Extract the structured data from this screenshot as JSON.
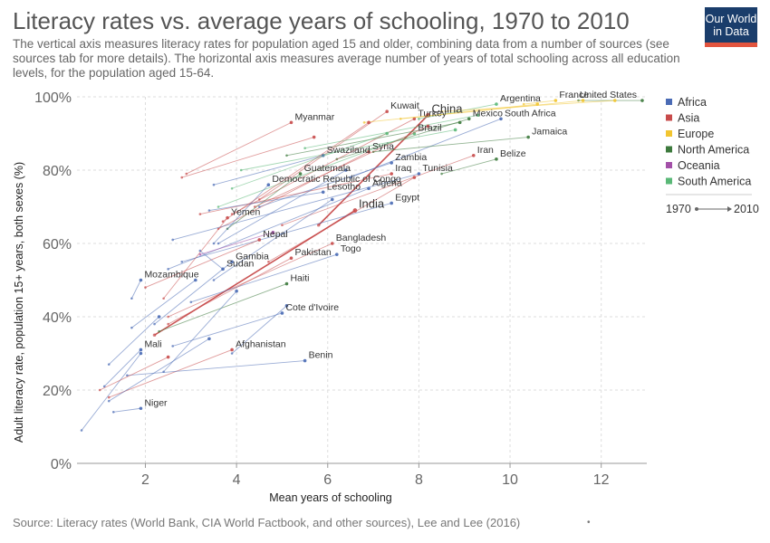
{
  "header": {
    "title": "Literacy rates vs. average years of schooling, 1970 to 2010",
    "subtitle": "The vertical axis measures literacy rates for population aged 15 and older, combining data from a number of sources (see sources tab for more details). The horizontal axis measures average number of years of total schooling across all education levels, for the population aged 15-64."
  },
  "logo": {
    "line1": "Our World",
    "line2": "in Data"
  },
  "footer": {
    "source": "Source: Literacy rates (World Bank, CIA World Factbook, and other sources), Lee and Lee (2016)",
    "dot": "•"
  },
  "colors": {
    "Africa": "#4a6bb5",
    "Asia": "#c84b4b",
    "Europe": "#f2c530",
    "North America": "#3d7a3d",
    "Oceania": "#a350a8",
    "South America": "#5ab877"
  },
  "chart_data": {
    "type": "scatter",
    "title": "Literacy rates vs. average years of schooling, 1970 to 2010",
    "xlabel": "Mean years of schooling",
    "ylabel": "Adult literacy rate, population 15+ years, both sexes (%)",
    "xlim": [
      0.5,
      13
    ],
    "ylim": [
      0,
      100
    ],
    "xticks": [
      2,
      4,
      6,
      8,
      10,
      12
    ],
    "yticks": [
      0,
      20,
      40,
      60,
      80,
      100
    ],
    "ytick_labels": [
      "0%",
      "20%",
      "40%",
      "60%",
      "80%",
      "100%"
    ],
    "grid": true,
    "legend": {
      "placement": "top-right",
      "entries": [
        "Africa",
        "Asia",
        "Europe",
        "North America",
        "Oceania",
        "South America"
      ],
      "time_start": "1970",
      "time_end": "2010"
    },
    "series": [
      {
        "label": "China",
        "region": "Asia",
        "x0": 5.8,
        "y0": 65,
        "x1": 8.2,
        "y1": 95,
        "big": true
      },
      {
        "label": "India",
        "region": "Asia",
        "x0": 2.2,
        "y0": 35,
        "x1": 6.6,
        "y1": 69,
        "big": true
      },
      {
        "label": "United States",
        "region": "North America",
        "x0": 11.5,
        "y0": 99,
        "x1": 12.9,
        "y1": 99
      },
      {
        "label": "France",
        "region": "Europe",
        "x0": 10.3,
        "y0": 98,
        "x1": 11,
        "y1": 99
      },
      {
        "label": "Argentina",
        "region": "South America",
        "x0": 8,
        "y0": 94,
        "x1": 9.7,
        "y1": 98
      },
      {
        "label": "Mexico",
        "region": "North America",
        "x0": 6.2,
        "y0": 83,
        "x1": 9.1,
        "y1": 94
      },
      {
        "label": "South Africa",
        "region": "Africa",
        "x0": 6.5,
        "y0": 78,
        "x1": 9.8,
        "y1": 94
      },
      {
        "label": "Jamaica",
        "region": "North America",
        "x0": 7,
        "y0": 85,
        "x1": 10.4,
        "y1": 89
      },
      {
        "label": "Turkey",
        "region": "Asia",
        "x0": 3.9,
        "y0": 68,
        "x1": 7.9,
        "y1": 94
      },
      {
        "label": "Kuwait",
        "region": "Asia",
        "x0": 4.5,
        "y0": 72,
        "x1": 7.3,
        "y1": 96
      },
      {
        "label": "Myanmar",
        "region": "Asia",
        "x0": 2.9,
        "y0": 79,
        "x1": 5.2,
        "y1": 93
      },
      {
        "label": "Brazil",
        "region": "South America",
        "x0": 3.6,
        "y0": 70,
        "x1": 7.9,
        "y1": 90
      },
      {
        "label": "Syria",
        "region": "Asia",
        "x0": 3.6,
        "y0": 64,
        "x1": 6.9,
        "y1": 85
      },
      {
        "label": "Swaziland",
        "region": "Africa",
        "x0": 3.5,
        "y0": 76,
        "x1": 5.9,
        "y1": 84
      },
      {
        "label": "Zambia",
        "region": "Africa",
        "x0": 4.5,
        "y0": 70,
        "x1": 7.4,
        "y1": 82
      },
      {
        "label": "Iraq",
        "region": "Asia",
        "x0": 3.2,
        "y0": 68,
        "x1": 7.4,
        "y1": 79
      },
      {
        "label": "Tunisia",
        "region": "Africa",
        "x0": 2.6,
        "y0": 61,
        "x1": 8,
        "y1": 79
      },
      {
        "label": "Iran",
        "region": "Asia",
        "x0": 5,
        "y0": 65,
        "x1": 9.2,
        "y1": 84
      },
      {
        "label": "Belize",
        "region": "North America",
        "x0": 8.5,
        "y0": 79,
        "x1": 9.7,
        "y1": 83
      },
      {
        "label": "Guatemala",
        "region": "North America",
        "x0": 3.8,
        "y0": 64,
        "x1": 5.4,
        "y1": 79
      },
      {
        "label": "Democratic Republic of Congo",
        "region": "Africa",
        "x0": 3.5,
        "y0": 60,
        "x1": 4.7,
        "y1": 76
      },
      {
        "label": "Lesotho",
        "region": "Africa",
        "x0": 3.4,
        "y0": 69,
        "x1": 5.9,
        "y1": 74
      },
      {
        "label": "Algeria",
        "region": "Africa",
        "x0": 2.5,
        "y0": 53,
        "x1": 6.9,
        "y1": 75
      },
      {
        "label": "Egypt",
        "region": "Africa",
        "x0": 2.8,
        "y0": 55,
        "x1": 7.4,
        "y1": 71
      },
      {
        "label": "Yemen",
        "region": "Asia",
        "x0": 2.4,
        "y0": 45,
        "x1": 3.8,
        "y1": 67
      },
      {
        "label": "Nepal",
        "region": "Asia",
        "x0": 2,
        "y0": 48,
        "x1": 4.5,
        "y1": 61
      },
      {
        "label": "Bangladesh",
        "region": "Asia",
        "x0": 2.5,
        "y0": 40,
        "x1": 6.1,
        "y1": 60
      },
      {
        "label": "Togo",
        "region": "Africa",
        "x0": 3,
        "y0": 44,
        "x1": 6.2,
        "y1": 57
      },
      {
        "label": "Pakistan",
        "region": "Asia",
        "x0": 2.5,
        "y0": 38,
        "x1": 5.2,
        "y1": 56
      },
      {
        "label": "Gambia",
        "region": "Africa",
        "x0": 2.2,
        "y0": 38,
        "x1": 3.9,
        "y1": 55
      },
      {
        "label": "Sudan",
        "region": "Africa",
        "x0": 3.2,
        "y0": 58,
        "x1": 3.7,
        "y1": 53
      },
      {
        "label": "Mozambique",
        "region": "Africa",
        "x0": 1.7,
        "y0": 45,
        "x1": 1.9,
        "y1": 50
      },
      {
        "label": "Haiti",
        "region": "North America",
        "x0": 2.3,
        "y0": 36,
        "x1": 5.1,
        "y1": 49
      },
      {
        "label": "Cote d'Ivoire",
        "region": "Africa",
        "x0": 2.6,
        "y0": 32,
        "x1": 5,
        "y1": 41
      },
      {
        "label": "Mali",
        "region": "Africa",
        "x0": 1.1,
        "y0": 21,
        "x1": 1.9,
        "y1": 31
      },
      {
        "label": "Afghanistan",
        "region": "Asia",
        "x0": 1.2,
        "y0": 18,
        "x1": 3.9,
        "y1": 31
      },
      {
        "label": "Benin",
        "region": "Africa",
        "x0": 1.6,
        "y0": 24,
        "x1": 5.5,
        "y1": 28
      },
      {
        "label": "Niger",
        "region": "Africa",
        "x0": 1.3,
        "y0": 14,
        "x1": 1.9,
        "y1": 15
      },
      {
        "label": "",
        "region": "Africa",
        "x0": 0.6,
        "y0": 9,
        "x1": 1.9,
        "y1": 30
      },
      {
        "label": "",
        "region": "Africa",
        "x0": 1.2,
        "y0": 27,
        "x1": 2.3,
        "y1": 40
      },
      {
        "label": "",
        "region": "Asia",
        "x0": 1.0,
        "y0": 20,
        "x1": 2.5,
        "y1": 29
      },
      {
        "label": "",
        "region": "Africa",
        "x0": 1.2,
        "y0": 17,
        "x1": 3.4,
        "y1": 34
      },
      {
        "label": "",
        "region": "Africa",
        "x0": 2.4,
        "y0": 25,
        "x1": 4,
        "y1": 47
      },
      {
        "label": "",
        "region": "Africa",
        "x0": 1.7,
        "y0": 37,
        "x1": 3.1,
        "y1": 50
      },
      {
        "label": "",
        "region": "Asia",
        "x0": 2.8,
        "y0": 78,
        "x1": 5.7,
        "y1": 89
      },
      {
        "label": "",
        "region": "South America",
        "x0": 4.1,
        "y0": 80,
        "x1": 8.8,
        "y1": 91
      },
      {
        "label": "",
        "region": "South America",
        "x0": 5.5,
        "y0": 86,
        "x1": 9.3,
        "y1": 95
      },
      {
        "label": "",
        "region": "North America",
        "x0": 5.1,
        "y0": 84,
        "x1": 8.9,
        "y1": 93
      },
      {
        "label": "",
        "region": "Europe",
        "x0": 7.6,
        "y0": 94,
        "x1": 11.6,
        "y1": 99
      },
      {
        "label": "",
        "region": "Europe",
        "x0": 8.5,
        "y0": 96,
        "x1": 12.3,
        "y1": 99
      },
      {
        "label": "",
        "region": "Europe",
        "x0": 6.8,
        "y0": 93,
        "x1": 10.6,
        "y1": 98
      },
      {
        "label": "",
        "region": "Asia",
        "x0": 3.7,
        "y0": 66,
        "x1": 6.9,
        "y1": 93
      },
      {
        "label": "",
        "region": "Africa",
        "x0": 3.6,
        "y0": 60,
        "x1": 6.4,
        "y1": 80
      },
      {
        "label": "",
        "region": "Africa",
        "x0": 3.5,
        "y0": 50,
        "x1": 6.1,
        "y1": 72
      },
      {
        "label": "",
        "region": "Asia",
        "x0": 4.4,
        "y0": 70,
        "x1": 8.2,
        "y1": 92
      },
      {
        "label": "",
        "region": "Oceania",
        "x0": 3.2,
        "y0": 57,
        "x1": 4.8,
        "y1": 63
      },
      {
        "label": "",
        "region": "South America",
        "x0": 3.9,
        "y0": 75,
        "x1": 7.3,
        "y1": 90
      },
      {
        "label": "",
        "region": "Africa",
        "x0": 3.9,
        "y0": 30,
        "x1": 5.1,
        "y1": 43
      },
      {
        "label": "",
        "region": "Asia",
        "x0": 4.7,
        "y0": 55,
        "x1": 7.9,
        "y1": 78
      }
    ]
  }
}
